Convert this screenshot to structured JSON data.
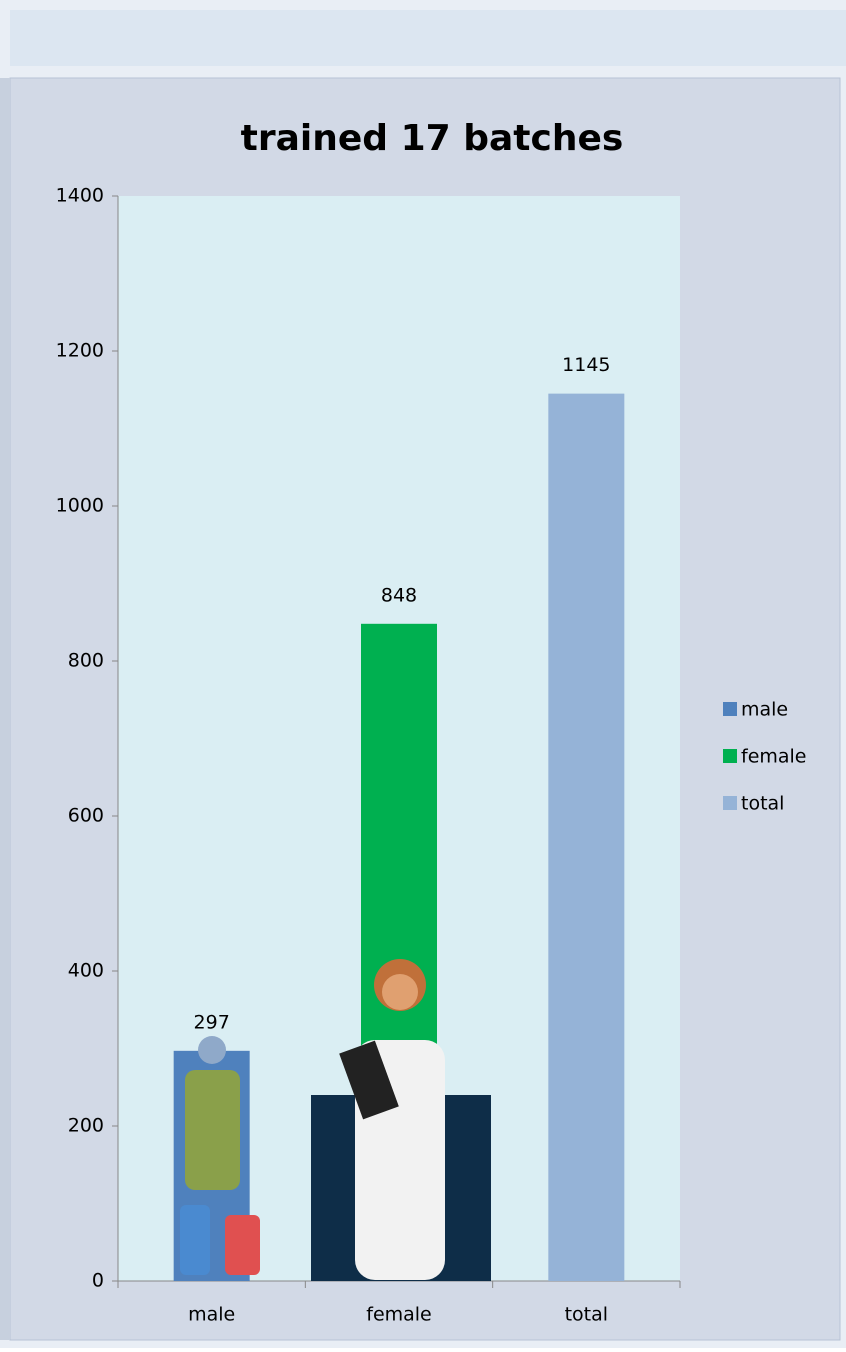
{
  "chart_data": {
    "type": "bar",
    "title": "trained 17 batches",
    "categories": [
      "male",
      "female",
      "total"
    ],
    "values": [
      297,
      848,
      1145
    ],
    "colors": [
      "#4f81bd",
      "#00b050",
      "#95b3d7"
    ],
    "ylim": [
      0,
      1400
    ],
    "yticks": [
      0,
      200,
      400,
      600,
      800,
      1000,
      1200,
      1400
    ],
    "legend": "right"
  }
}
